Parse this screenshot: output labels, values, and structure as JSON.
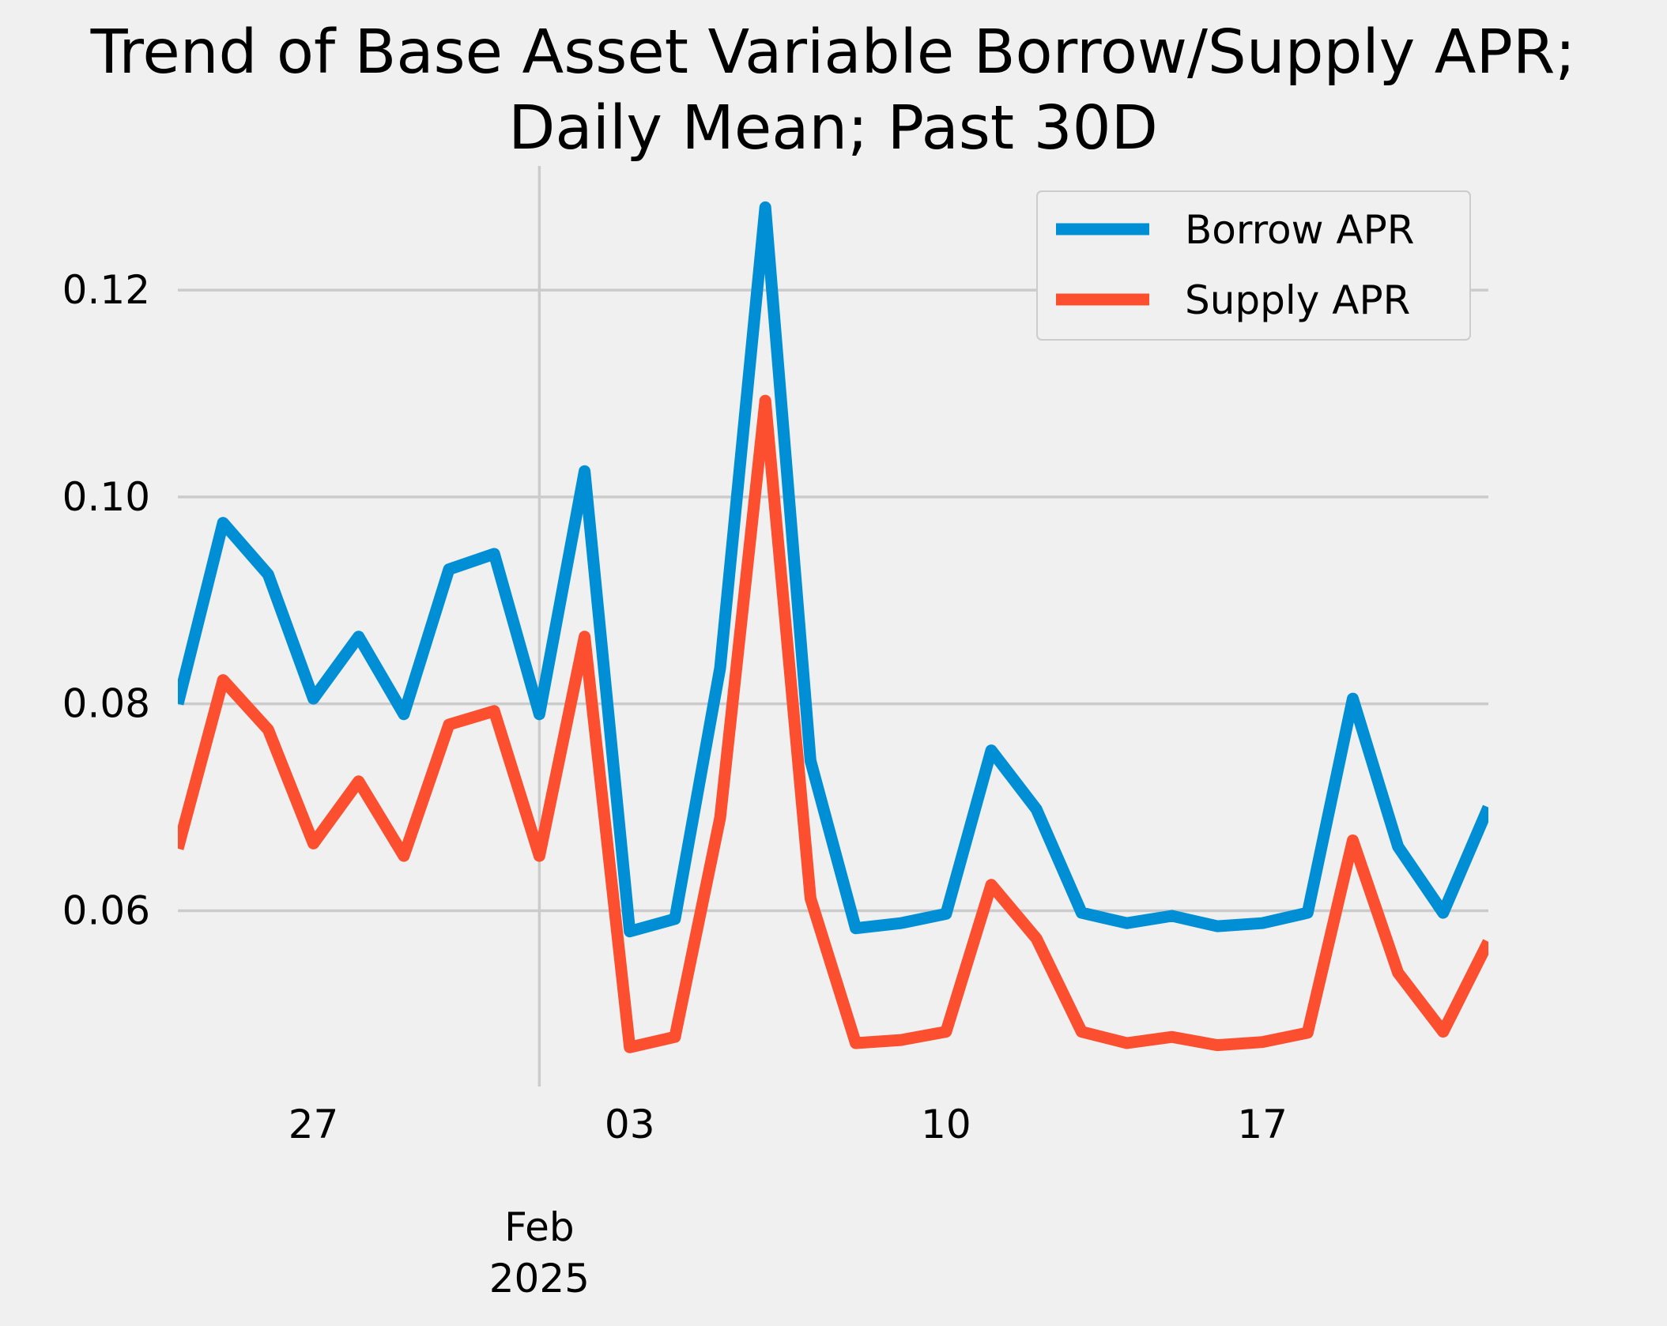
{
  "chart_data": {
    "type": "line",
    "title": [
      "Trend of Base Asset Variable Borrow/Supply APR;",
      "Daily Mean; Past 30D"
    ],
    "xlabel": "",
    "ylabel": "",
    "x": [
      "2025-01-24",
      "2025-01-25",
      "2025-01-26",
      "2025-01-27",
      "2025-01-28",
      "2025-01-29",
      "2025-01-30",
      "2025-01-31",
      "2025-02-01",
      "2025-02-02",
      "2025-02-03",
      "2025-02-04",
      "2025-02-05",
      "2025-02-06",
      "2025-02-07",
      "2025-02-08",
      "2025-02-09",
      "2025-02-10",
      "2025-02-11",
      "2025-02-12",
      "2025-02-13",
      "2025-02-14",
      "2025-02-15",
      "2025-02-16",
      "2025-02-17",
      "2025-02-18",
      "2025-02-19",
      "2025-02-20",
      "2025-02-21",
      "2025-02-22"
    ],
    "xlim": [
      "2025-01-24",
      "2025-02-22"
    ],
    "ylim": [
      0.043,
      0.132
    ],
    "yticks": [
      0.06,
      0.08,
      0.1,
      0.12
    ],
    "ytick_labels": [
      "0.06",
      "0.08",
      "0.10",
      "0.12"
    ],
    "xticks": [
      "2025-01-27",
      "2025-02-03",
      "2025-02-10",
      "2025-02-17"
    ],
    "xtick_labels": [
      "27",
      "03",
      "10",
      "17"
    ],
    "x_major_tick": {
      "date": "2025-02-01",
      "label_lines": [
        "Feb",
        "2025"
      ]
    },
    "grid": true,
    "legend_position": "upper right",
    "series": [
      {
        "name": "Borrow APR",
        "color": "#008fd5",
        "values": [
          0.08,
          0.0975,
          0.0925,
          0.0805,
          0.0865,
          0.079,
          0.093,
          0.0945,
          0.079,
          0.1025,
          0.058,
          0.0592,
          0.0835,
          0.128,
          0.0745,
          0.0583,
          0.0588,
          0.0597,
          0.0755,
          0.0698,
          0.0598,
          0.0588,
          0.0595,
          0.0585,
          0.0588,
          0.0598,
          0.0805,
          0.0662,
          0.0598,
          0.07
        ]
      },
      {
        "name": "Supply APR",
        "color": "#fc4f30",
        "values": [
          0.066,
          0.0823,
          0.0775,
          0.0665,
          0.0725,
          0.0653,
          0.078,
          0.0793,
          0.0653,
          0.0865,
          0.0468,
          0.0478,
          0.069,
          0.1093,
          0.0612,
          0.0472,
          0.0475,
          0.0483,
          0.0625,
          0.0573,
          0.0483,
          0.0472,
          0.0478,
          0.047,
          0.0473,
          0.0482,
          0.0668,
          0.054,
          0.0483,
          0.057
        ]
      }
    ]
  }
}
